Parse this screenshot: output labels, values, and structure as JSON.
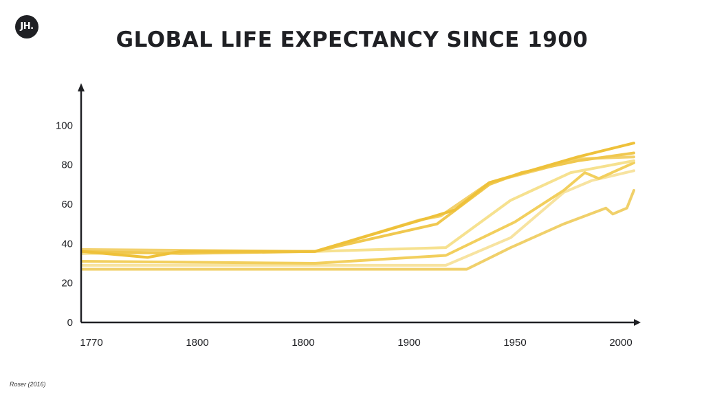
{
  "logo": {
    "text": "JH."
  },
  "title": "GLOBAL LIFE EXPECTANCY SINCE 1900",
  "source": "Roser (2016)",
  "colors": {
    "axis": "#1f2024",
    "text": "#1f2024"
  },
  "chart_data": {
    "type": "line",
    "title": "GLOBAL LIFE EXPECTANCY SINCE 1900",
    "xlabel": "",
    "ylabel": "",
    "x_ticks": [
      "1770",
      "1800",
      "1800",
      "1900",
      "1950",
      "2000"
    ],
    "y_ticks": [
      "0",
      "20",
      "40",
      "60",
      "80",
      "100"
    ],
    "ylim": [
      0,
      120
    ],
    "grid": false,
    "legend": "none",
    "series": [
      {
        "color": "#eec13a",
        "opacity": 1.0,
        "x": [
          1770,
          1790,
          1800,
          1880,
          1930,
          1950,
          1995,
          2035
        ],
        "y": [
          36,
          33,
          36,
          36,
          57,
          71,
          84,
          91
        ]
      },
      {
        "color": "#f0c84f",
        "opacity": 1.0,
        "x": [
          1770,
          1800,
          1880,
          1920,
          1950,
          1965,
          1995,
          2035
        ],
        "y": [
          36,
          35,
          36,
          50,
          70,
          76,
          82,
          86
        ]
      },
      {
        "color": "#f3d16c",
        "opacity": 1.0,
        "x": [
          1770,
          1880,
          1910,
          1922,
          1950,
          1975,
          1995,
          2035
        ],
        "y": [
          37,
          36,
          52,
          54,
          71,
          78,
          83,
          84
        ]
      },
      {
        "color": "#f6e18f",
        "opacity": 1.0,
        "x": [
          1770,
          1880,
          1925,
          1960,
          1990,
          2035
        ],
        "y": [
          35,
          36,
          38,
          62,
          76,
          82
        ]
      },
      {
        "color": "#f2cf5d",
        "opacity": 1.0,
        "x": [
          1770,
          1880,
          1925,
          1962,
          1985,
          2000,
          2010,
          2035
        ],
        "y": [
          31,
          30,
          34,
          51,
          67,
          76,
          73,
          81
        ]
      },
      {
        "color": "#f7e3a0",
        "opacity": 1.0,
        "x": [
          1770,
          1925,
          1960,
          1985,
          2005,
          2035
        ],
        "y": [
          29,
          29,
          43,
          66,
          72,
          77
        ]
      },
      {
        "color": "#f0d06a",
        "opacity": 1.0,
        "x": [
          1770,
          1937,
          1960,
          1985,
          2015,
          2020,
          2030,
          2035
        ],
        "y": [
          27,
          27,
          38,
          50,
          58,
          55,
          58,
          67
        ]
      }
    ]
  }
}
